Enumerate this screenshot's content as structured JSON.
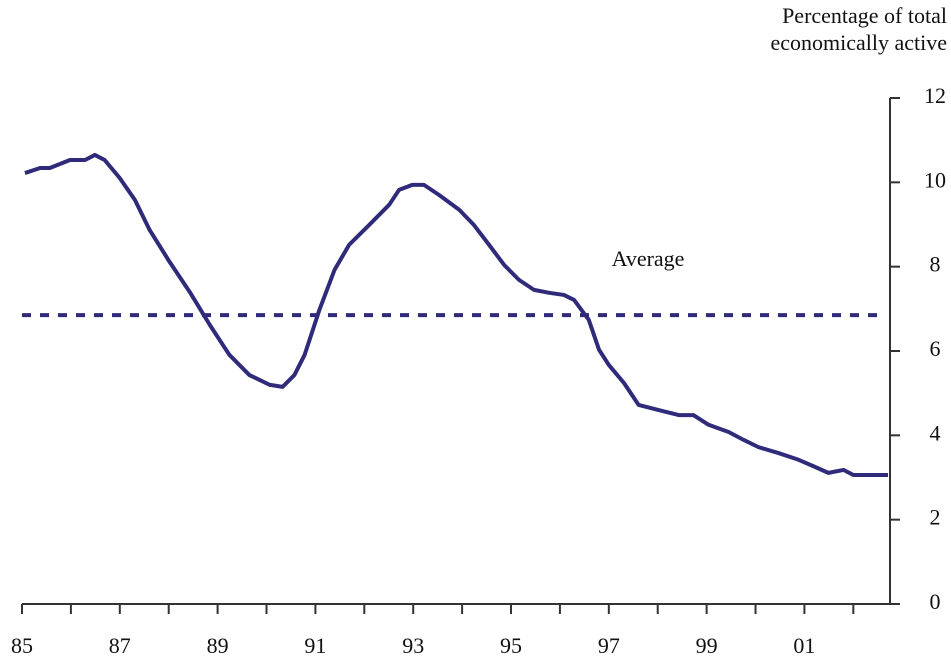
{
  "chart_data": {
    "type": "line",
    "y_axis_label": "Percentage of total economically active",
    "annotation": "Average",
    "average": 6.85,
    "x": [
      1985.06,
      1985.37,
      1985.57,
      1985.98,
      1986.29,
      1986.49,
      1986.69,
      1987.0,
      1987.31,
      1987.61,
      1988.02,
      1988.43,
      1988.84,
      1989.24,
      1989.65,
      1990.06,
      1990.33,
      1990.57,
      1990.78,
      1991.08,
      1991.39,
      1991.69,
      1992.1,
      1992.51,
      1992.71,
      1992.98,
      1993.22,
      1993.53,
      1993.94,
      1994.24,
      1994.55,
      1994.86,
      1995.16,
      1995.47,
      1995.78,
      1996.08,
      1996.29,
      1996.59,
      1996.8,
      1997.0,
      1997.31,
      1997.61,
      1998.02,
      1998.43,
      1998.73,
      1999.04,
      1999.45,
      1999.76,
      2000.06,
      2000.47,
      2000.88,
      2001.18,
      2001.49,
      2001.8,
      2002.0,
      2002.71
    ],
    "series": [
      {
        "color": "#2f2b7a",
        "values": [
          10.22,
          10.34,
          10.34,
          10.53,
          10.53,
          10.65,
          10.53,
          10.1,
          9.58,
          8.87,
          8.11,
          7.4,
          6.62,
          5.91,
          5.43,
          5.2,
          5.15,
          5.43,
          5.91,
          6.97,
          7.92,
          8.52,
          8.99,
          9.47,
          9.82,
          9.94,
          9.94,
          9.7,
          9.35,
          8.99,
          8.52,
          8.04,
          7.69,
          7.45,
          7.38,
          7.33,
          7.21,
          6.74,
          6.03,
          5.67,
          5.24,
          4.72,
          4.6,
          4.48,
          4.48,
          4.25,
          4.08,
          3.89,
          3.72,
          3.58,
          3.42,
          3.27,
          3.11,
          3.18,
          3.06,
          3.06
        ]
      }
    ],
    "xlim": [
      1985,
      2002.75
    ],
    "ylim": [
      0,
      12
    ],
    "xticks": [
      {
        "value": 1985,
        "label": "85"
      },
      {
        "value": 1987,
        "label": "87"
      },
      {
        "value": 1989,
        "label": "89"
      },
      {
        "value": 1991,
        "label": "91"
      },
      {
        "value": 1993,
        "label": "93"
      },
      {
        "value": 1995,
        "label": "95"
      },
      {
        "value": 1997,
        "label": "97"
      },
      {
        "value": 1999,
        "label": "99"
      },
      {
        "value": 2001,
        "label": "01"
      }
    ],
    "xminor_ticks": [
      1986,
      1988,
      1990,
      1992,
      1994,
      1996,
      1998,
      2000,
      2002
    ],
    "yticks": [
      0,
      2,
      4,
      6,
      8,
      10,
      12
    ],
    "y_axis_side": "right"
  }
}
